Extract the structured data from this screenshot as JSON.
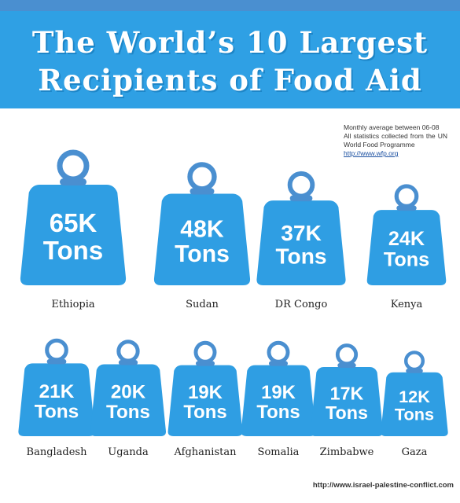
{
  "title": {
    "line1": "The World’s 10 Largest",
    "line2": "Recipients of Food Aid"
  },
  "note": {
    "line1": "Monthly average between 06-08",
    "line2": "All statistics collected from the UN World Food Programme",
    "link": "http://www.wfp.org"
  },
  "footer": "http://www.israel-palestine-conflict.com",
  "colors": {
    "banner": "#2fa0e4",
    "weight": "#2f9ee3",
    "ring": "#4a8fd0"
  },
  "chart_data": {
    "type": "bar",
    "title": "The World’s 10 Largest Recipients of Food Aid",
    "unit": "Tons",
    "categories": [
      "Ethiopia",
      "Sudan",
      "DR Congo",
      "Kenya",
      "Bangladesh",
      "Uganda",
      "Afghanistan",
      "Somalia",
      "Zimbabwe",
      "Gaza"
    ],
    "values": [
      65000,
      48000,
      37000,
      24000,
      21000,
      20000,
      19000,
      19000,
      17000,
      12000
    ],
    "value_labels": [
      "65K",
      "48K",
      "37K",
      "24K",
      "21K",
      "20K",
      "19K",
      "19K",
      "17K",
      "12K"
    ],
    "unit_label": "Tons"
  }
}
